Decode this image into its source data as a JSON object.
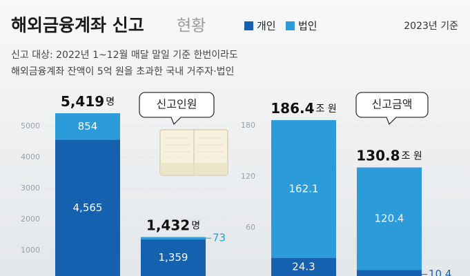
{
  "header": {
    "title": "해외금융계좌 신고",
    "title_suffix": "현황",
    "basis": "2023년 기준",
    "note_lines": [
      "신고 대상: 2022년 1~12월 매달 말일 기준 한번이라도",
      "해외금융계좌 잔액이 5억 원을 초과한 국내 거주자·법인"
    ]
  },
  "chart_data": [
    {
      "type": "stacked_bar",
      "title": "신고인원",
      "categories": [
        null,
        null
      ],
      "series": [
        {
          "name": "개인",
          "color": "#1660b0",
          "values": [
            4565,
            1359
          ],
          "value_labels": [
            "4,565",
            "1,359"
          ]
        },
        {
          "name": "법인",
          "color": "#2b9bd9",
          "values": [
            854,
            73
          ]
        }
      ],
      "totals": [
        5419,
        1432
      ],
      "total_labels": [
        "5,419",
        "1,432"
      ],
      "total_unit": "명",
      "ylim": [
        0,
        5800
      ],
      "yticks": [
        1000,
        2000,
        3000,
        4000,
        5000
      ]
    },
    {
      "type": "stacked_bar",
      "title": "신고금액",
      "categories": [
        null,
        null
      ],
      "series": [
        {
          "color": "#1660b0",
          "values": [
            24.3,
            10.4
          ]
        },
        {
          "color": "#2b9bd9",
          "values": [
            162.1,
            120.4
          ]
        }
      ],
      "totals": [
        186.4,
        130.8
      ],
      "total_unit": "조 원",
      "ylim": [
        0,
        195
      ],
      "yticks": [
        60,
        120,
        180
      ]
    }
  ]
}
